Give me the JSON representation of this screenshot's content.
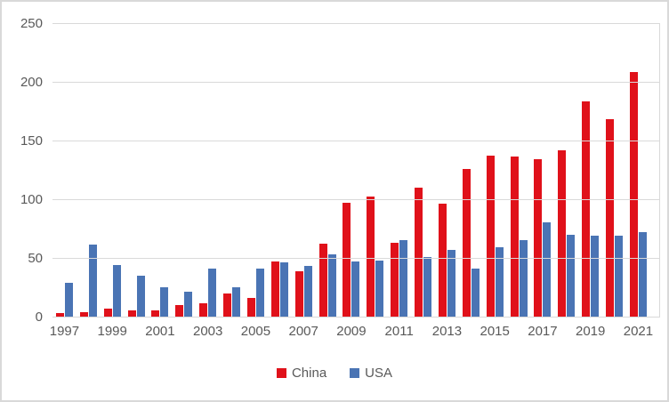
{
  "chart_data": {
    "type": "bar",
    "title": "",
    "xlabel": "",
    "ylabel": "",
    "categories": [
      "1997",
      "1998",
      "1999",
      "2000",
      "2001",
      "2002",
      "2003",
      "2004",
      "2005",
      "2006",
      "2007",
      "2008",
      "2009",
      "2010",
      "2011",
      "2012",
      "2013",
      "2014",
      "2015",
      "2016",
      "2017",
      "2018",
      "2019",
      "2020",
      "2021"
    ],
    "series": [
      {
        "name": "China",
        "color": "#e0111a",
        "values": [
          3,
          4,
          7,
          5,
          5,
          10,
          11,
          20,
          16,
          47,
          39,
          62,
          97,
          102,
          63,
          110,
          96,
          126,
          137,
          136,
          134,
          142,
          183,
          168,
          208
        ]
      },
      {
        "name": "USA",
        "color": "#4a74b4",
        "values": [
          29,
          61,
          44,
          35,
          25,
          21,
          41,
          25,
          41,
          46,
          43,
          53,
          47,
          48,
          65,
          51,
          57,
          41,
          59,
          65,
          80,
          70,
          69,
          69,
          72
        ]
      }
    ],
    "ylim": [
      0,
      250
    ],
    "yticks": [
      0,
      50,
      100,
      150,
      200,
      250
    ],
    "xtick_labels": [
      "1997",
      "1999",
      "2001",
      "2003",
      "2005",
      "2007",
      "2009",
      "2011",
      "2013",
      "2015",
      "2017",
      "2019",
      "2021"
    ],
    "grid": "horizontal-only",
    "legend_position": "bottom"
  },
  "style_colors": {
    "gridline": "#d9d9d9",
    "axis_text": "#595959",
    "background": "#ffffff",
    "frame_border": "#d9d9d9"
  }
}
